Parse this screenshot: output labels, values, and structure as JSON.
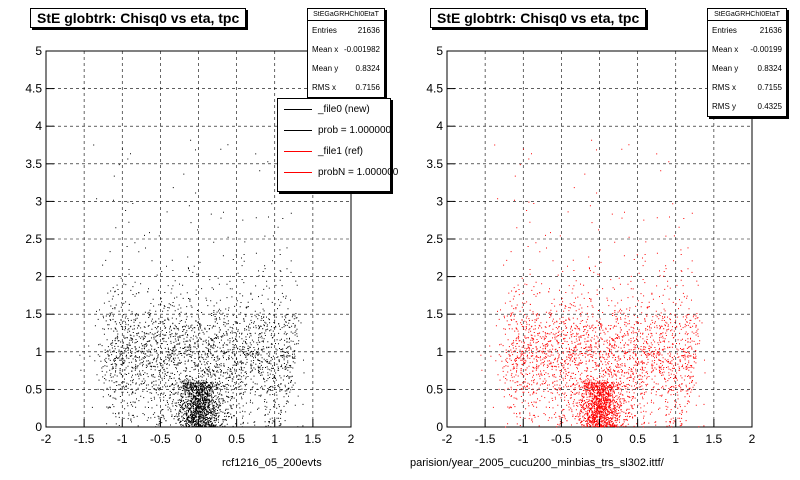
{
  "colors": {
    "black": "#000000",
    "red": "#ff0000"
  },
  "panels": [
    {
      "title": "StE globtrk: Chisq0 vs eta, tpc",
      "stats": {
        "header": "StEGaGRHChI0EtaT",
        "rows": [
          {
            "label": "Entries",
            "value": "21636"
          },
          {
            "label": "Mean x",
            "value": "-0.001982"
          },
          {
            "label": "Mean y",
            "value": "0.8324"
          },
          {
            "label": "RMS x",
            "value": "0.7156"
          }
        ]
      },
      "legend": [
        {
          "label": "_file0 (new)",
          "color": "#000000"
        },
        {
          "label": "prob = 1.000000",
          "color": "#000000"
        },
        {
          "label": "_file1 (ref)",
          "color": "#ff0000"
        },
        {
          "label": "probN = 1.000000",
          "color": "#ff0000"
        }
      ],
      "footer": "rcf1216_05_200evts"
    },
    {
      "title": "StE globtrk: Chisq0 vs eta, tpc",
      "stats": {
        "header": "StEGaGRHChI0EtaT",
        "rows": [
          {
            "label": "Entries",
            "value": "21636"
          },
          {
            "label": "Mean x",
            "value": "-0.00199"
          },
          {
            "label": "Mean y",
            "value": "0.8324"
          },
          {
            "label": "RMS x",
            "value": "0.7155"
          },
          {
            "label": "RMS y",
            "value": "0.4325"
          }
        ]
      },
      "footer": "parision/year_2005_cucu200_minbias_trs_sl302.ittf/"
    }
  ],
  "chart_data": [
    {
      "type": "scatter",
      "title": "StE globtrk: Chisq0 vs eta, tpc",
      "xlim": [
        -2,
        2
      ],
      "ylim": [
        0,
        5
      ],
      "x_ticks": [
        "-2",
        "-1.5",
        "-1",
        "-0.5",
        "0",
        "0.5",
        "1",
        "1.5",
        "2"
      ],
      "y_ticks": [
        "0",
        "0.5",
        "1",
        "1.5",
        "2",
        "2.5",
        "3",
        "3.5",
        "4",
        "4.5",
        "5"
      ],
      "grid": true,
      "legend_position": "top-right",
      "color": "#000000",
      "n_points": 21636,
      "mean_x": -0.001982,
      "mean_y": 0.8324,
      "rms_x": 0.7156
    },
    {
      "type": "scatter",
      "title": "StE globtrk: Chisq0 vs eta, tpc",
      "xlim": [
        -2,
        2
      ],
      "ylim": [
        0,
        5
      ],
      "x_ticks": [
        "-2",
        "-1.5",
        "-1",
        "-0.5",
        "0",
        "0.5",
        "1",
        "1.5",
        "2"
      ],
      "y_ticks": [
        "0",
        "0.5",
        "1",
        "1.5",
        "2",
        "2.5",
        "3",
        "3.5",
        "4",
        "4.5",
        "5"
      ],
      "grid": true,
      "color": "#ff0000",
      "n_points": 21636,
      "mean_x": -0.00199,
      "mean_y": 0.8324,
      "rms_x": 0.7155,
      "rms_y": 0.4325
    }
  ]
}
